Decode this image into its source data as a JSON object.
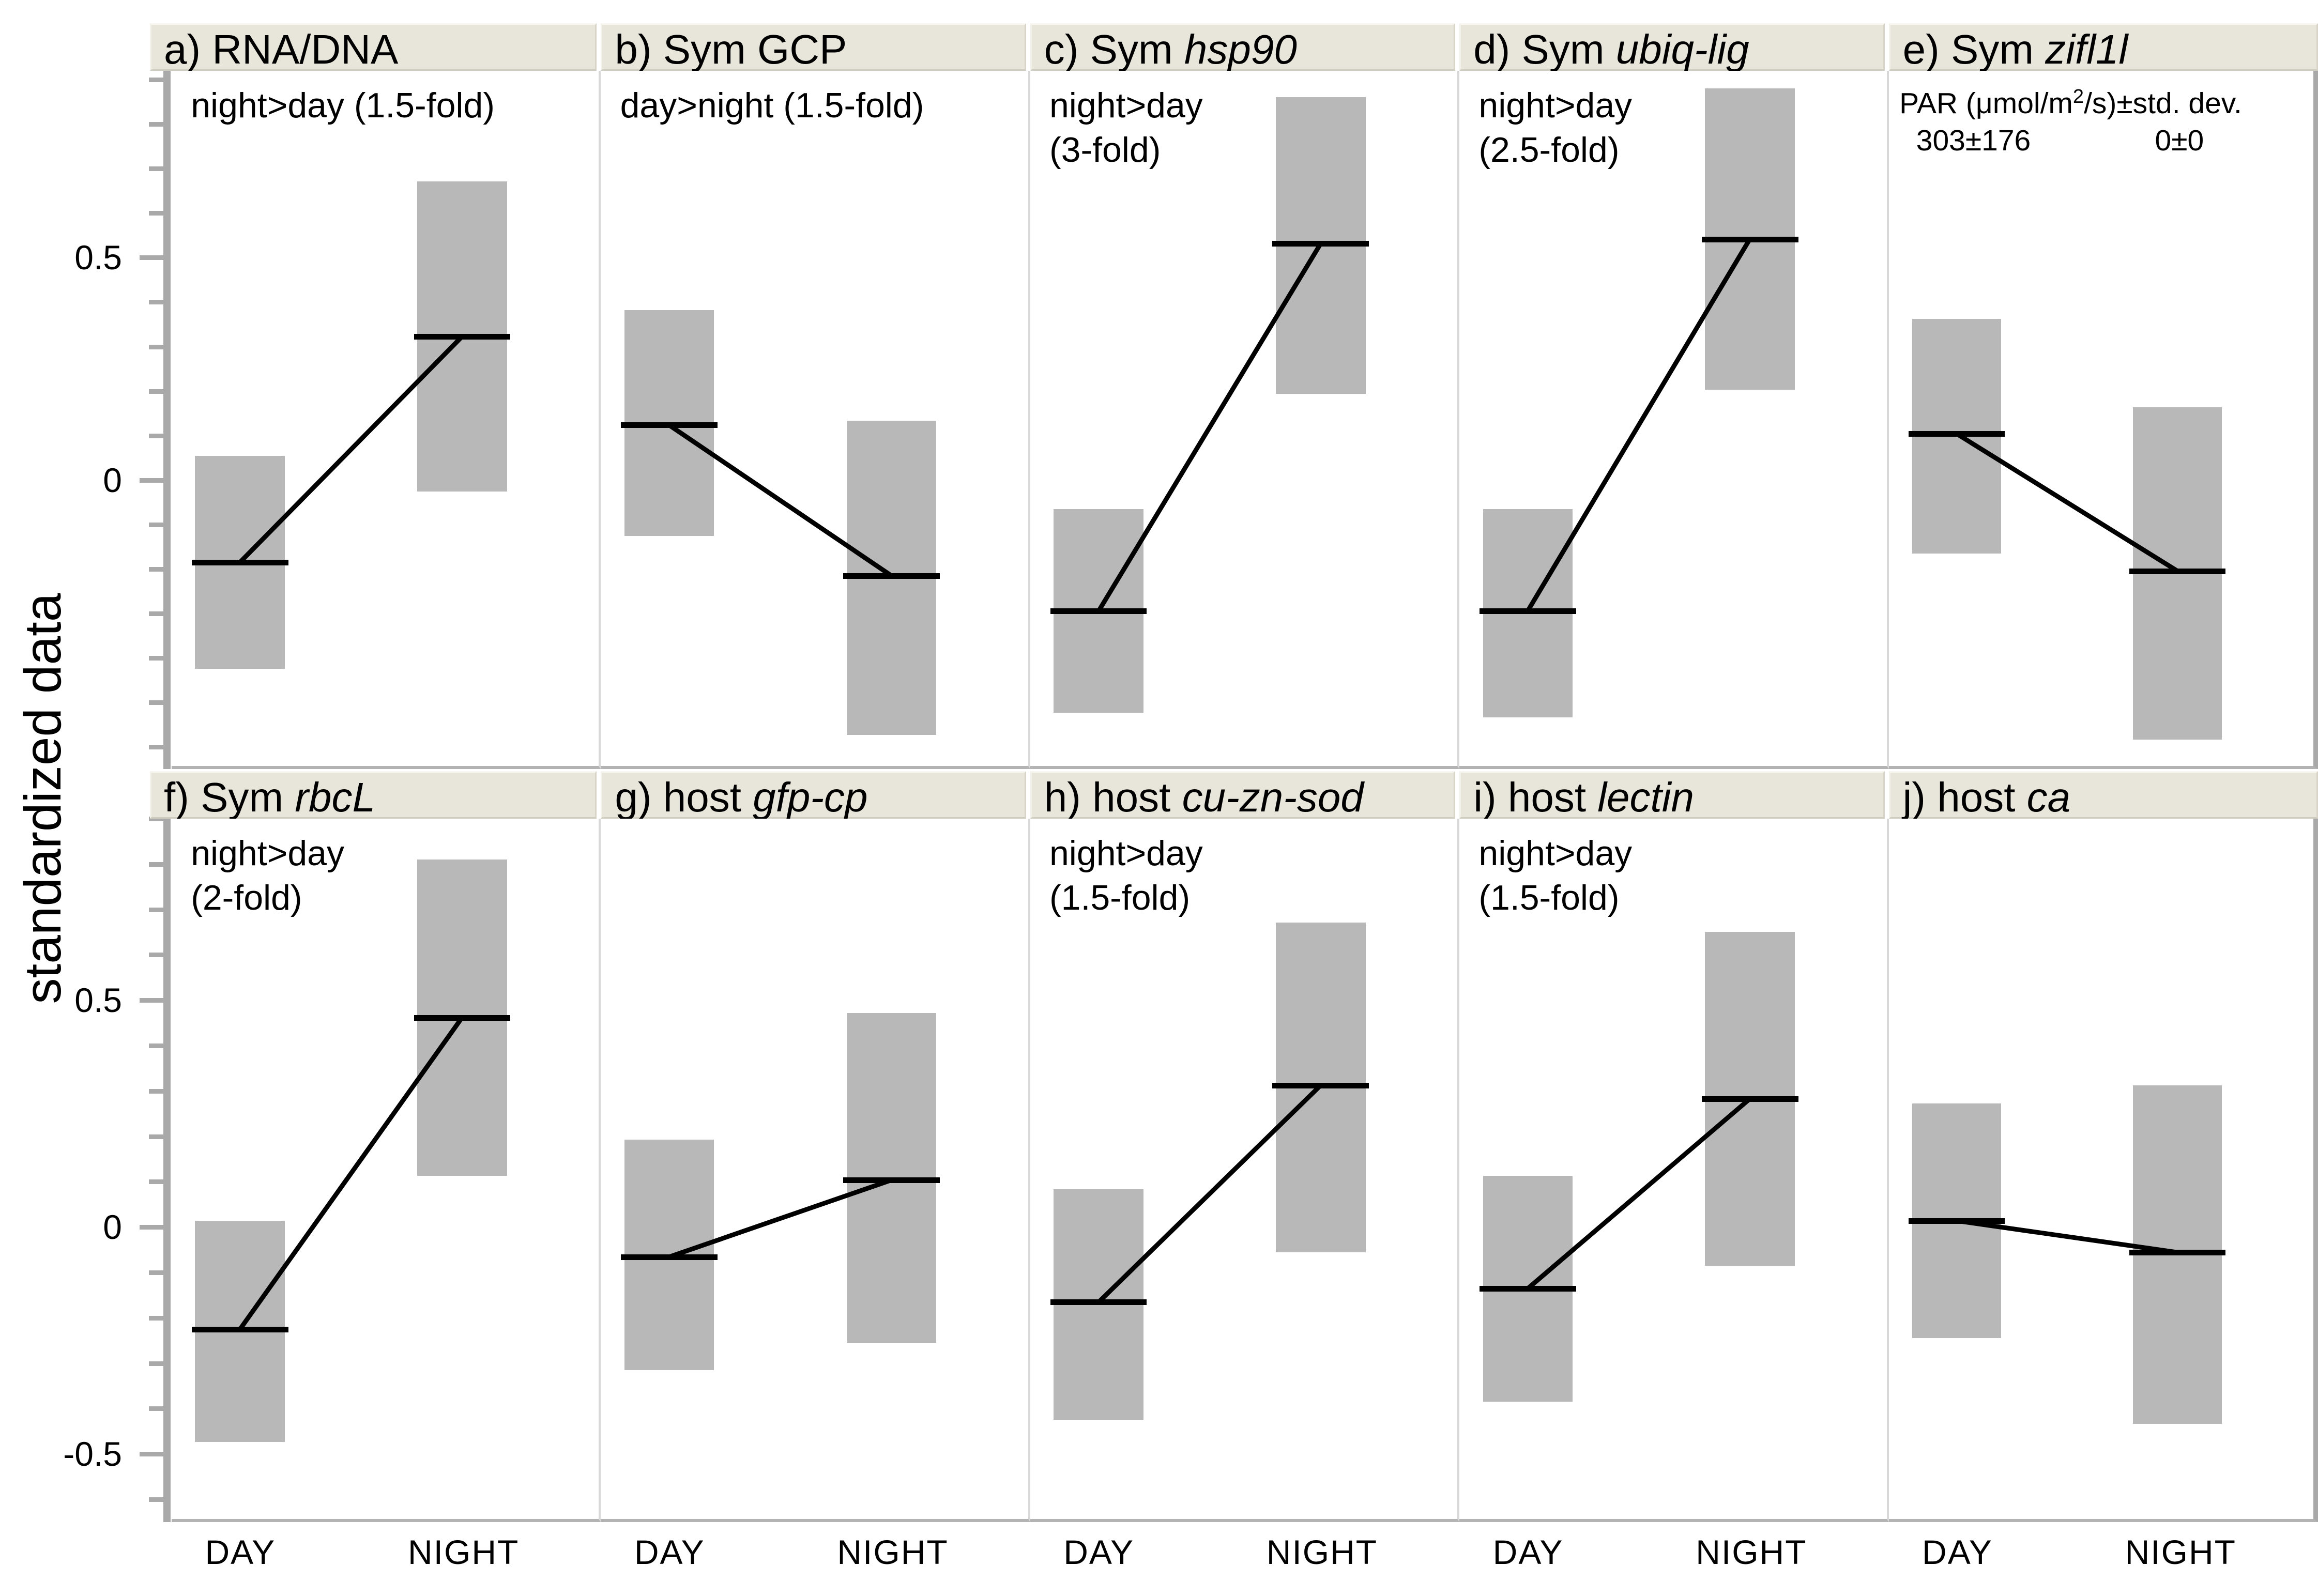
{
  "chart_data": {
    "type": "line",
    "subtype": "condition means with ± std. dev. gray boxes, means connected by a line",
    "title": "",
    "ylabel": "standardized data",
    "categories": [
      "DAY",
      "NIGHT"
    ],
    "legend": "none",
    "grid": false,
    "rows": [
      {
        "ylim": [
          -0.65,
          0.92
        ],
        "minor_tick_step": 0.1,
        "major_ticks": [
          {
            "v": 0.5,
            "label": "0.5"
          },
          {
            "v": 0,
            "label": "0"
          }
        ]
      },
      {
        "ylim": [
          -0.65,
          0.9
        ],
        "minor_tick_step": 0.1,
        "major_ticks": [
          {
            "v": 0.5,
            "label": "0.5"
          },
          {
            "v": 0,
            "label": "0"
          },
          {
            "v": -0.5,
            "label": "-0.5"
          }
        ]
      }
    ],
    "panels": [
      {
        "id": "a",
        "row": 0,
        "col": 0,
        "title_prefix": "a) RNA/DNA",
        "title_italic": "",
        "annotation_lines": [
          "night>day (1.5-fold)"
        ],
        "day": {
          "mean": -0.19,
          "box_top": 0.05,
          "box_bottom": -0.43
        },
        "night": {
          "mean": 0.32,
          "box_top": 0.67,
          "box_bottom": -0.03
        }
      },
      {
        "id": "b",
        "row": 0,
        "col": 1,
        "title_prefix": "b) Sym GCP",
        "title_italic": "",
        "annotation_lines": [
          "day>night (1.5-fold)"
        ],
        "day": {
          "mean": 0.12,
          "box_top": 0.38,
          "box_bottom": -0.13
        },
        "night": {
          "mean": -0.22,
          "box_top": 0.13,
          "box_bottom": -0.58
        }
      },
      {
        "id": "c",
        "row": 0,
        "col": 2,
        "title_prefix": "c) Sym ",
        "title_italic": "hsp90",
        "annotation_lines": [
          "night>day",
          "(3-fold)"
        ],
        "day": {
          "mean": -0.3,
          "box_top": -0.07,
          "box_bottom": -0.53
        },
        "night": {
          "mean": 0.53,
          "box_top": 0.86,
          "box_bottom": 0.19
        }
      },
      {
        "id": "d",
        "row": 0,
        "col": 3,
        "title_prefix": "d) Sym ",
        "title_italic": "ubiq-lig",
        "annotation_lines": [
          "night>day",
          "(2.5-fold)"
        ],
        "day": {
          "mean": -0.3,
          "box_top": -0.07,
          "box_bottom": -0.54
        },
        "night": {
          "mean": 0.54,
          "box_top": 0.88,
          "box_bottom": 0.2
        }
      },
      {
        "id": "e",
        "row": 0,
        "col": 4,
        "title_prefix": "e) Sym ",
        "title_italic": "zifl1l",
        "annotation_lines": [],
        "par": {
          "prefix": "PAR (μmol/m",
          "sup": "2",
          "suffix": "/s)±std. dev.",
          "day_value": "303±176",
          "night_value": "0±0"
        },
        "day": {
          "mean": 0.1,
          "box_top": 0.36,
          "box_bottom": -0.17
        },
        "night": {
          "mean": -0.21,
          "box_top": 0.16,
          "box_bottom": -0.59
        }
      },
      {
        "id": "f",
        "row": 1,
        "col": 0,
        "title_prefix": "f) Sym ",
        "title_italic": "rbcL",
        "annotation_lines": [
          "night>day",
          "(2-fold)"
        ],
        "day": {
          "mean": -0.23,
          "box_top": 0.01,
          "box_bottom": -0.48
        },
        "night": {
          "mean": 0.46,
          "box_top": 0.81,
          "box_bottom": 0.11
        }
      },
      {
        "id": "g",
        "row": 1,
        "col": 1,
        "title_prefix": "g) host ",
        "title_italic": "gfp-cp",
        "annotation_lines": [],
        "day": {
          "mean": -0.07,
          "box_top": 0.19,
          "box_bottom": -0.32
        },
        "night": {
          "mean": 0.1,
          "box_top": 0.47,
          "box_bottom": -0.26
        }
      },
      {
        "id": "h",
        "row": 1,
        "col": 2,
        "title_prefix": "h) host ",
        "title_italic": "cu-zn-sod",
        "annotation_lines": [
          "night>day",
          "(1.5-fold)"
        ],
        "day": {
          "mean": -0.17,
          "box_top": 0.08,
          "box_bottom": -0.43
        },
        "night": {
          "mean": 0.31,
          "box_top": 0.67,
          "box_bottom": -0.06
        }
      },
      {
        "id": "i",
        "row": 1,
        "col": 3,
        "title_prefix": "i) host ",
        "title_italic": "lectin",
        "annotation_lines": [
          "night>day",
          "(1.5-fold)"
        ],
        "day": {
          "mean": -0.14,
          "box_top": 0.11,
          "box_bottom": -0.39
        },
        "night": {
          "mean": 0.28,
          "box_top": 0.65,
          "box_bottom": -0.09
        }
      },
      {
        "id": "j",
        "row": 1,
        "col": 4,
        "title_prefix": "j) host ",
        "title_italic": "ca",
        "annotation_lines": [],
        "day": {
          "mean": 0.01,
          "box_top": 0.27,
          "box_bottom": -0.25
        },
        "night": {
          "mean": -0.06,
          "box_top": 0.31,
          "box_bottom": -0.44
        }
      }
    ],
    "colors": {
      "sd_box": "#b9b8b8",
      "mean_line": "#000000",
      "axis": "#a9a9a9",
      "header_bg": "#e8e6db"
    }
  }
}
